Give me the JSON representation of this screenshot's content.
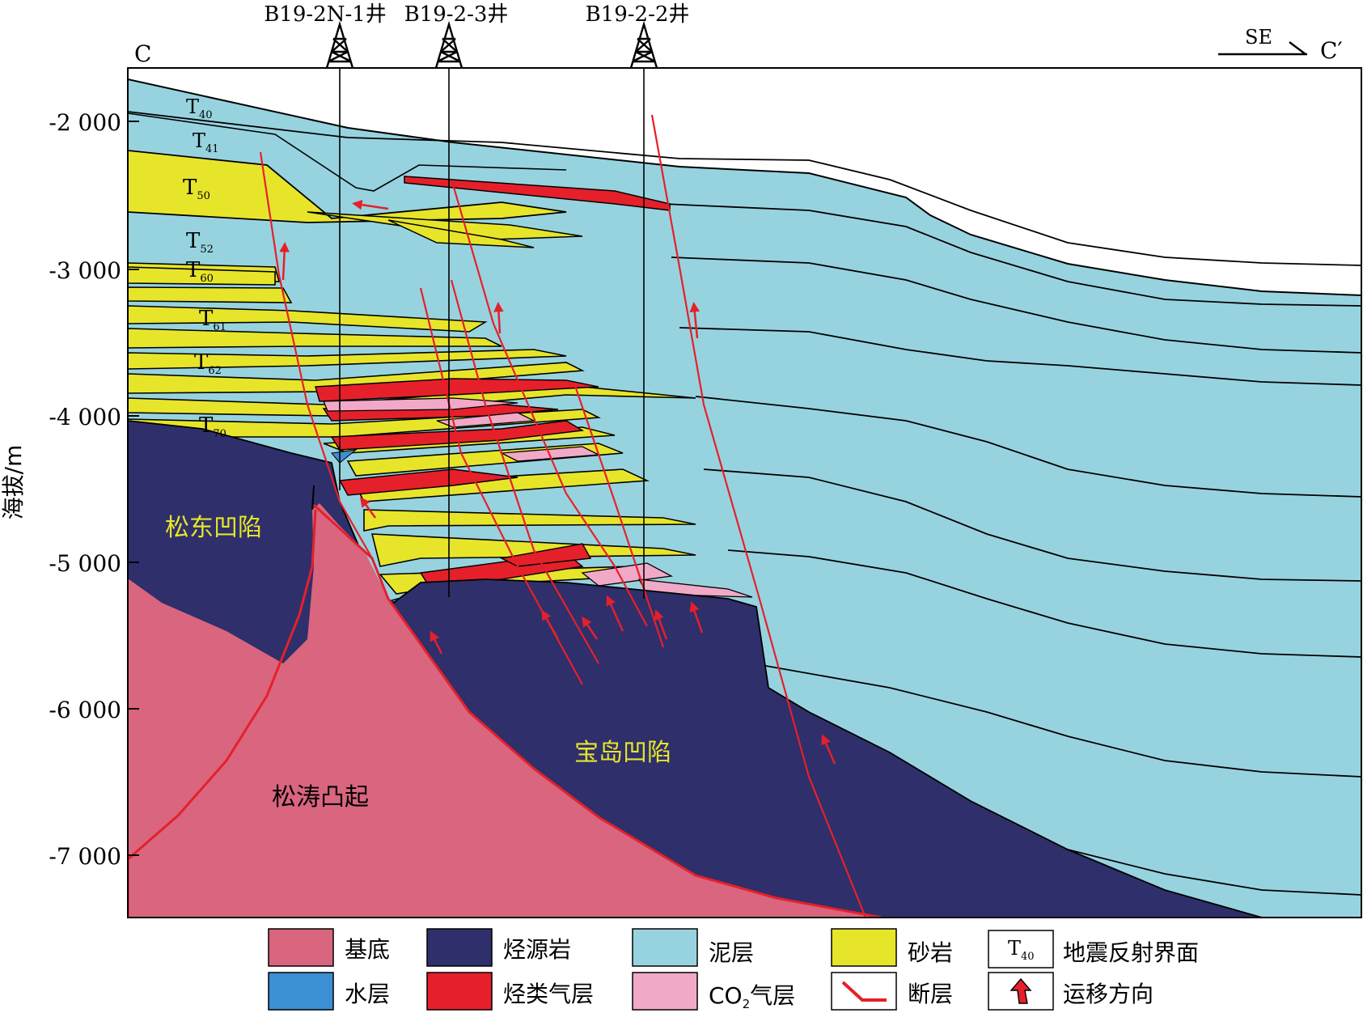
{
  "section": {
    "left_label": "C",
    "right_label": "C′",
    "direction": "SE"
  },
  "wells": [
    {
      "name": "B19-2N-1井"
    },
    {
      "name": "B19-2-3井"
    },
    {
      "name": "B19-2-2井"
    }
  ],
  "axis": {
    "label": "海拔/m",
    "ticks": [
      "-2 000",
      "-3 000",
      "-4 000",
      "-5 000",
      "-6 000",
      "-7 000"
    ]
  },
  "horizons": [
    {
      "name": "T",
      "sub": "40"
    },
    {
      "name": "T",
      "sub": "41"
    },
    {
      "name": "T",
      "sub": "50"
    },
    {
      "name": "T",
      "sub": "52"
    },
    {
      "name": "T",
      "sub": "60"
    },
    {
      "name": "T",
      "sub": "61"
    },
    {
      "name": "T",
      "sub": "62"
    },
    {
      "name": "T",
      "sub": "70"
    }
  ],
  "regions": {
    "songdong": "松东凹陷",
    "baodao": "宝岛凹陷",
    "songtao": "松涛凸起"
  },
  "colors": {
    "basement": "#d9657f",
    "source_rock": "#2e2f6b",
    "mudstone": "#97d3df",
    "sandstone": "#e7e52a",
    "water": "#3b8fd3",
    "hydrocarbon_gas": "#e5202a",
    "co2_gas": "#f1a9c8",
    "fault": "#e5202a"
  },
  "legend": {
    "basement": "基底",
    "source_rock": "烃源岩",
    "mudstone": "泥层",
    "sandstone": "砂岩",
    "reflector_sample": {
      "name": "T",
      "sub": "40"
    },
    "reflector": "地震反射界面",
    "water": "水层",
    "hydrocarbon_gas": "烃类气层",
    "co2_prefix": "CO",
    "co2_sub": "2",
    "co2_suffix": "气层",
    "fault": "断层",
    "migration": "运移方向"
  }
}
